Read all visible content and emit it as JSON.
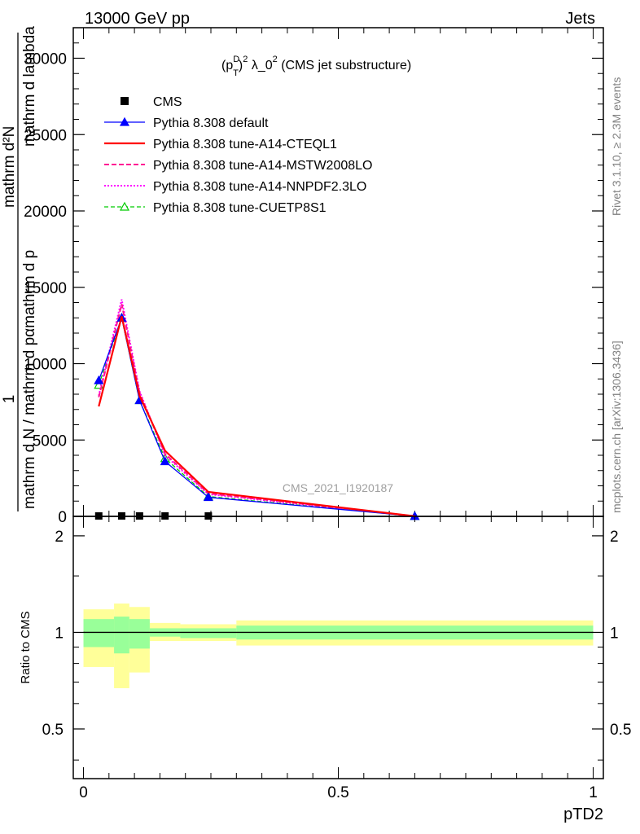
{
  "header": {
    "left": "13000 GeV pp",
    "right": "Jets"
  },
  "side_labels": {
    "rivet": "Rivet 3.1.10, ≥ 2.3M events",
    "mcplots": "mcplots.cern.ch [arXiv:1306.3436]"
  },
  "watermark": "CMS_2021_I1920187",
  "colors": {
    "data": "#000000",
    "default": "#0000ff",
    "cteql1": "#ff0000",
    "mstw": "#ff1493",
    "nnpdf": "#ff00ff",
    "cuetp8s1": "#00cc00",
    "band_outer": "#ffff99",
    "band_inner": "#99ff99"
  },
  "chart_data": [
    {
      "type": "line",
      "title": "(p_T^D)^2 λ_0^2 (CMS jet substructure)",
      "title_parts": {
        "a": "(p",
        "sup1": "D",
        "sub1": "T",
        "b": ")",
        "sup2": "2",
        "c": " λ_0",
        "sup3": "2",
        "d": " (CMS jet substructure)"
      },
      "ylabel_lines": [
        "1",
        "mathrm d N / mathrm d pαmathrm d p",
        "mathrm d²N",
        "T",
        "mathrm d lambda",
        "T  mathrm d lambda"
      ],
      "ylim": [
        0,
        32000
      ],
      "xlim": [
        -0.02,
        1.02
      ],
      "y_ticks": [
        0,
        5000,
        10000,
        15000,
        20000,
        25000,
        30000
      ],
      "y_tick_labels": [
        "0",
        "5000",
        "10000",
        "15000",
        "20000",
        "25000",
        "30000"
      ],
      "legend_position": "top-left",
      "series": [
        {
          "key": "data",
          "name": "CMS",
          "style": "square",
          "x": [
            0.03,
            0.075,
            0.11,
            0.16,
            0.245
          ],
          "y": [
            0,
            0,
            0,
            0,
            0
          ]
        },
        {
          "key": "default",
          "name": "Pythia 8.308 default",
          "style": "solid-tri",
          "x": [
            0.03,
            0.075,
            0.11,
            0.16,
            0.245,
            0.65
          ],
          "y": [
            8900,
            13000,
            7600,
            3600,
            1250,
            10
          ]
        },
        {
          "key": "cteql1",
          "name": "Pythia 8.308 tune-A14-CTEQL1",
          "style": "solid-thick",
          "x": [
            0.03,
            0.075,
            0.11,
            0.16,
            0.245,
            0.65
          ],
          "y": [
            7200,
            13100,
            7900,
            4300,
            1600,
            10
          ]
        },
        {
          "key": "mstw",
          "name": "Pythia 8.308 tune-A14-MSTW2008LO",
          "style": "dashed",
          "x": [
            0.03,
            0.075,
            0.11,
            0.16,
            0.245,
            0.65
          ],
          "y": [
            7800,
            13900,
            8100,
            4100,
            1500,
            10
          ]
        },
        {
          "key": "nnpdf",
          "name": "Pythia 8.308 tune-A14-NNPDF2.3LO",
          "style": "dotted",
          "x": [
            0.03,
            0.075,
            0.11,
            0.16,
            0.245,
            0.65
          ],
          "y": [
            7900,
            14200,
            8200,
            4000,
            1450,
            10
          ]
        },
        {
          "key": "cuetp8s1",
          "name": "Pythia 8.308 tune-CUETP8S1",
          "style": "dashed-open-tri",
          "x": [
            0.03,
            0.075,
            0.11,
            0.16,
            0.245,
            0.65
          ],
          "y": [
            8600,
            13000,
            7600,
            3800,
            1300,
            10
          ]
        }
      ]
    },
    {
      "type": "area",
      "ylabel": "Ratio to CMS",
      "xlabel": "pTD2",
      "xlim": [
        -0.02,
        1.02
      ],
      "ylim": [
        0.35,
        2.3
      ],
      "y_ticks": [
        0.5,
        1,
        2
      ],
      "y_tick_labels": [
        "0.5",
        "1",
        "2"
      ],
      "x_ticks": [
        0,
        0.5,
        1
      ],
      "x_tick_labels": [
        "0",
        "0.5",
        "1"
      ],
      "reference": 1,
      "bins": [
        {
          "x0": 0.0,
          "x1": 0.06,
          "outer": [
            0.78,
            1.18
          ],
          "inner": [
            0.9,
            1.1
          ]
        },
        {
          "x0": 0.06,
          "x1": 0.09,
          "outer": [
            0.67,
            1.23
          ],
          "inner": [
            0.86,
            1.12
          ]
        },
        {
          "x0": 0.09,
          "x1": 0.13,
          "outer": [
            0.75,
            1.2
          ],
          "inner": [
            0.89,
            1.1
          ]
        },
        {
          "x0": 0.13,
          "x1": 0.19,
          "outer": [
            0.94,
            1.07
          ],
          "inner": [
            0.97,
            1.03
          ]
        },
        {
          "x0": 0.19,
          "x1": 0.3,
          "outer": [
            0.94,
            1.06
          ],
          "inner": [
            0.96,
            1.03
          ]
        },
        {
          "x0": 0.3,
          "x1": 1.0,
          "outer": [
            0.91,
            1.09
          ],
          "inner": [
            0.95,
            1.05
          ]
        }
      ]
    }
  ]
}
